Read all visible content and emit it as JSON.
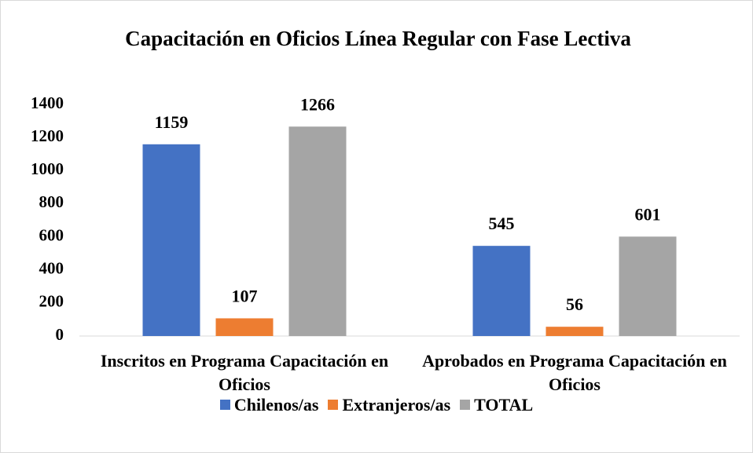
{
  "chart_data": {
    "type": "bar",
    "title": "Capacitación en Oficios Línea Regular con Fase Lectiva",
    "categories": [
      "Inscritos en Programa Capacitación en Oficios",
      "Aprobados en Programa Capacitación en Oficios"
    ],
    "series": [
      {
        "name": "Chilenos/as",
        "color": "#4472c4",
        "values": [
          1159,
          545
        ]
      },
      {
        "name": "Extranjeros/as",
        "color": "#ed7d31",
        "values": [
          107,
          56
        ]
      },
      {
        "name": "TOTAL",
        "color": "#a5a5a5",
        "values": [
          1266,
          601
        ]
      }
    ],
    "ylim": [
      0,
      1400
    ],
    "yticks": [
      0,
      200,
      400,
      600,
      800,
      1000,
      1200,
      1400
    ],
    "legend": "bottom"
  }
}
